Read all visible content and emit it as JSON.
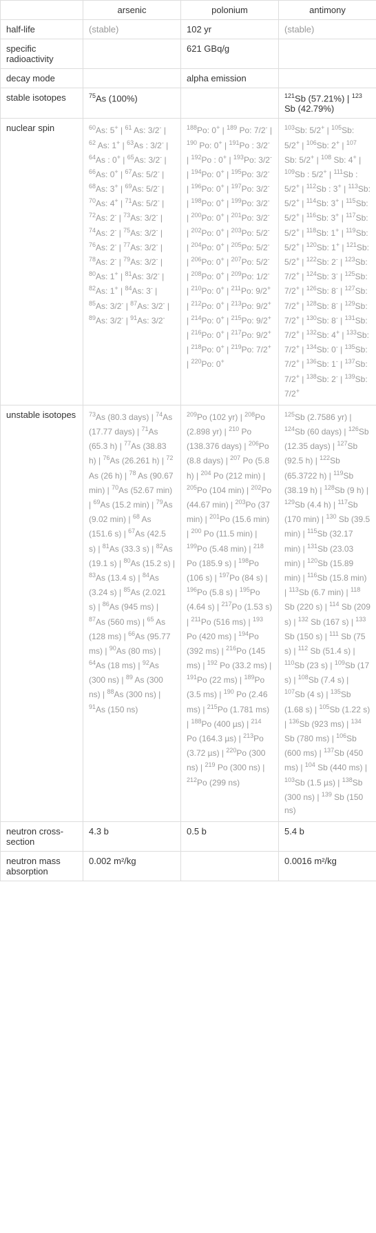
{
  "headers": {
    "col1": "arsenic",
    "col2": "polonium",
    "col3": "antimony"
  },
  "rows": {
    "halflife": {
      "label": "half-life",
      "arsenic": "(stable)",
      "polonium": "102 yr",
      "antimony": "(stable)"
    },
    "radioactivity": {
      "label": "specific radioactivity",
      "arsenic": "",
      "polonium": "621 GBq/g",
      "antimony": ""
    },
    "decay": {
      "label": "decay mode",
      "arsenic": "",
      "polonium": "alpha emission",
      "antimony": ""
    },
    "stable": {
      "label": "stable isotopes"
    },
    "spin": {
      "label": "nuclear spin"
    },
    "unstable": {
      "label": "unstable isotopes"
    },
    "cross": {
      "label": "neutron cross-section",
      "arsenic": "4.3 b",
      "polonium": "0.5 b",
      "antimony": "5.4 b"
    },
    "mass": {
      "label": "neutron mass absorption",
      "arsenic": "0.002 m²/kg",
      "polonium": "",
      "antimony": "0.0016 m²/kg"
    }
  },
  "stable_isotopes": {
    "arsenic_html": "<sup>75</sup>As (100%)",
    "polonium_html": "",
    "antimony_html": "<sup>121</sup>Sb (57.21%) | <sup>123</sup> Sb (42.79%)"
  },
  "nuclear_spin": {
    "arsenic_html": "<sup>60</sup>As: 5<sup>+</sup> | <sup>61</sup> As: 3/2<sup>-</sup> | <sup>62</sup> As: 1<sup>+</sup> | <sup>63</sup>As : 3/2<sup>-</sup> | <sup>64</sup>As : 0<sup>+</sup> | <sup>65</sup>As: 3/2<sup>-</sup> | <sup>66</sup>As: 0<sup>+</sup> | <sup>67</sup>As: 5/2<sup>-</sup> | <sup>68</sup>As: 3<sup>+</sup> | <sup>69</sup>As: 5/2<sup>-</sup> | <sup>70</sup>As: 4<sup>+</sup> | <sup>71</sup>As: 5/2<sup>-</sup> | <sup>72</sup>As: 2<sup>-</sup> | <sup>73</sup>As: 3/2<sup>-</sup> | <sup>74</sup>As: 2<sup>-</sup> | <sup>75</sup>As: 3/2<sup>-</sup> | <sup>76</sup>As: 2<sup>-</sup> | <sup>77</sup>As: 3/2<sup>-</sup> | <sup>78</sup>As: 2<sup>-</sup> | <sup>79</sup>As: 3/2<sup>-</sup> | <sup>80</sup>As: 1<sup>+</sup> | <sup>81</sup>As: 3/2<sup>-</sup> | <sup>82</sup>As: 1<sup>+</sup> | <sup>84</sup>As: 3<sup>-</sup> | <sup>85</sup>As: 3/2<sup>-</sup> | <sup>87</sup>As: 3/2<sup>-</sup> | <sup>89</sup>As: 3/2<sup>-</sup> | <sup>91</sup>As: 3/2<sup>-</sup>",
    "polonium_html": "<sup>188</sup>Po: 0<sup>+</sup> | <sup>189</sup> Po: 7/2<sup>-</sup> | <sup>190</sup> Po: 0<sup>+</sup> | <sup>191</sup>Po : 3/2<sup>-</sup> | <sup>192</sup>Po : 0<sup>+</sup> | <sup>193</sup>Po: 3/2<sup>-</sup> | <sup>194</sup>Po: 0<sup>+</sup> | <sup>195</sup>Po: 3/2<sup>-</sup> | <sup>196</sup>Po: 0<sup>+</sup> | <sup>197</sup>Po: 3/2<sup>-</sup> | <sup>198</sup>Po: 0<sup>+</sup> | <sup>199</sup>Po: 3/2<sup>-</sup> | <sup>200</sup>Po: 0<sup>+</sup> | <sup>201</sup>Po: 3/2<sup>-</sup> | <sup>202</sup>Po: 0<sup>+</sup> | <sup>203</sup>Po: 5/2<sup>-</sup> | <sup>204</sup>Po: 0<sup>+</sup> | <sup>205</sup>Po: 5/2<sup>-</sup> | <sup>206</sup>Po: 0<sup>+</sup> | <sup>207</sup>Po: 5/2<sup>-</sup> | <sup>208</sup>Po: 0<sup>+</sup> | <sup>209</sup>Po: 1/2<sup>-</sup> | <sup>210</sup>Po: 0<sup>+</sup> | <sup>211</sup>Po: 9/2<sup>+</sup> | <sup>212</sup>Po: 0<sup>+</sup> | <sup>213</sup>Po: 9/2<sup>+</sup> | <sup>214</sup>Po: 0<sup>+</sup> | <sup>215</sup>Po: 9/2<sup>+</sup> | <sup>216</sup>Po: 0<sup>+</sup> | <sup>217</sup>Po: 9/2<sup>+</sup> | <sup>218</sup>Po: 0<sup>+</sup> | <sup>219</sup>Po: 7/2<sup>+</sup> | <sup>220</sup>Po: 0<sup>+</sup>",
    "antimony_html": "<sup>103</sup>Sb: 5/2<sup>+</sup> | <sup>105</sup>Sb: 5/2<sup>+</sup> | <sup>106</sup>Sb: 2<sup>+</sup> | <sup>107</sup> Sb: 5/2<sup>+</sup> | <sup>108</sup> Sb: 4<sup>+</sup> | <sup>109</sup>Sb : 5/2<sup>+</sup> | <sup>111</sup>Sb : 5/2<sup>+</sup> | <sup>112</sup>Sb : 3<sup>+</sup> | <sup>113</sup>Sb: 5/2<sup>+</sup> | <sup>114</sup>Sb: 3<sup>+</sup> | <sup>115</sup>Sb: 5/2<sup>+</sup> | <sup>116</sup>Sb: 3<sup>+</sup> | <sup>117</sup>Sb: 5/2<sup>+</sup> | <sup>118</sup>Sb: 1<sup>+</sup> | <sup>119</sup>Sb: 5/2<sup>+</sup> | <sup>120</sup>Sb: 1<sup>+</sup> | <sup>121</sup>Sb: 5/2<sup>+</sup> | <sup>122</sup>Sb: 2<sup>-</sup> | <sup>123</sup>Sb: 7/2<sup>+</sup> | <sup>124</sup>Sb: 3<sup>-</sup> | <sup>125</sup>Sb: 7/2<sup>+</sup> | <sup>126</sup>Sb: 8<sup>-</sup> | <sup>127</sup>Sb: 7/2<sup>+</sup> | <sup>128</sup>Sb: 8<sup>-</sup> | <sup>129</sup>Sb: 7/2<sup>+</sup> | <sup>130</sup>Sb: 8<sup>-</sup> | <sup>131</sup>Sb: 7/2<sup>+</sup> | <sup>132</sup>Sb: 4<sup>+</sup> | <sup>133</sup>Sb: 7/2<sup>+</sup> | <sup>134</sup>Sb: 0<sup>-</sup> | <sup>135</sup>Sb: 7/2<sup>+</sup> | <sup>136</sup>Sb: 1<sup>-</sup> | <sup>137</sup>Sb: 7/2<sup>+</sup> | <sup>138</sup>Sb: 2<sup>-</sup> | <sup>139</sup>Sb: 7/2<sup>+</sup>"
  },
  "unstable_isotopes": {
    "arsenic_html": "<sup>73</sup>As (80.3 days) | <sup>74</sup>As (17.77 days) | <sup>71</sup>As (65.3 h) | <sup>77</sup>As (38.83 h) | <sup>76</sup>As (26.261 h) | <sup>72</sup> As (26 h) | <sup>78</sup> As (90.67 min) | <sup>70</sup>As (52.67 min) | <sup>69</sup>As (15.2 min) | <sup>79</sup>As (9.02 min) | <sup>68</sup> As (151.6 s) | <sup>67</sup>As (42.5 s) | <sup>81</sup>As (33.3 s) | <sup>82</sup>As (19.1 s) | <sup>80</sup>As (15.2 s) | <sup>83</sup>As (13.4 s) | <sup>84</sup>As (3.24 s) | <sup>85</sup>As (2.021 s) | <sup>86</sup>As (945 ms) | <sup>87</sup>As (560 ms) | <sup>65</sup> As (128 ms) | <sup>66</sup>As (95.77 ms) | <sup>90</sup>As (80 ms) | <sup>64</sup>As (18 ms) | <sup>92</sup>As (300 ns) | <sup>89</sup> As (300 ns) | <sup>88</sup>As (300 ns) | <sup>91</sup>As (150 ns)",
    "polonium_html": "<sup>209</sup>Po (102 yr) | <sup>208</sup>Po (2.898 yr) | <sup>210</sup> Po (138.376 days) | <sup>206</sup>Po (8.8 days) | <sup>207</sup> Po (5.8 h) | <sup>204</sup> Po (212 min) | <sup>205</sup>Po (104 min) | <sup>202</sup>Po (44.67 min) | <sup>203</sup>Po (37 min) | <sup>201</sup>Po (15.6 min) | <sup>200</sup> Po (11.5 min) | <sup>199</sup>Po (5.48 min) | <sup>218</sup> Po (185.9 s) | <sup>198</sup>Po (106 s) | <sup>197</sup>Po (84 s) | <sup>196</sup>Po (5.8 s) | <sup>195</sup>Po (4.64 s) | <sup>217</sup>Po (1.53 s) | <sup>211</sup>Po (516 ms) | <sup>193</sup> Po (420 ms) | <sup>194</sup>Po (392 ms) | <sup>216</sup>Po (145 ms) | <sup>192</sup> Po (33.2 ms) | <sup>191</sup>Po (22 ms) | <sup>189</sup>Po (3.5 ms) | <sup>190</sup> Po (2.46 ms) | <sup>215</sup>Po (1.781 ms) | <sup>188</sup>Po (400 µs) | <sup>214</sup> Po (164.3 µs) | <sup>213</sup>Po (3.72 µs) | <sup>220</sup>Po (300 ns) | <sup>219</sup> Po (300 ns) | <sup>212</sup>Po (299 ns)",
    "antimony_html": "<sup>125</sup>Sb (2.7586 yr) | <sup>124</sup>Sb (60 days) | <sup>126</sup>Sb (12.35 days) | <sup>127</sup>Sb (92.5 h) | <sup>122</sup>Sb (65.3722 h) | <sup>119</sup>Sb (38.19 h) | <sup>128</sup>Sb (9 h) | <sup>129</sup>Sb (4.4 h) | <sup>117</sup>Sb (170 min) | <sup>130</sup> Sb (39.5 min) | <sup>115</sup>Sb (32.17 min) | <sup>131</sup>Sb (23.03 min) | <sup>120</sup>Sb (15.89 min) | <sup>116</sup>Sb (15.8 min) | <sup>113</sup>Sb (6.7 min) | <sup>118</sup> Sb (220 s) | <sup>114</sup> Sb (209 s) | <sup>132</sup> Sb (167 s) | <sup>133</sup> Sb (150 s) | <sup>111</sup> Sb (75 s) | <sup>112</sup> Sb (51.4 s) | <sup>110</sup>Sb (23 s) | <sup>109</sup>Sb (17 s) | <sup>108</sup>Sb (7.4 s) | <sup>107</sup>Sb (4 s) | <sup>135</sup>Sb (1.68 s) | <sup>105</sup>Sb (1.22 s) | <sup>136</sup>Sb (923 ms) | <sup>134</sup> Sb (780 ms) | <sup>106</sup>Sb (600 ms) | <sup>137</sup>Sb (450 ms) | <sup>104</sup> Sb (440 ms) | <sup>103</sup>Sb (1.5 µs) | <sup>138</sup>Sb (300 ns) | <sup>139</sup> Sb (150 ns)"
  },
  "style": {
    "background": "#ffffff",
    "border_color": "#dddddd",
    "text_color": "#333333",
    "gray_color": "#999999",
    "font_size": 13
  }
}
